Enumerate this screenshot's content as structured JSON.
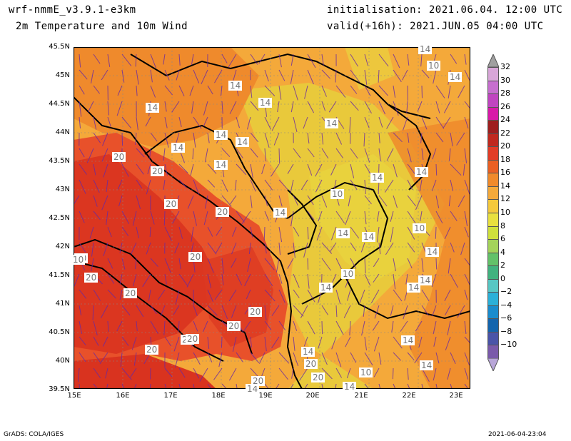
{
  "header": {
    "model": "wrf-nmmE_v3.9.1-e3km",
    "product": "2m Temperature and 10m Wind",
    "init": "initialisation: 2021.06.04. 12:00 UTC",
    "valid": "valid(+16h): 2021.JUN.05 04:00 UTC"
  },
  "footer": {
    "left": "GrADS: COLA/IGES",
    "right": "2021-06-04-23:04"
  },
  "map": {
    "lat_labels": [
      "45.5N",
      "45N",
      "44.5N",
      "44N",
      "43.5N",
      "43N",
      "42.5N",
      "42N",
      "41.5N",
      "41N",
      "40.5N",
      "40N",
      "39.5N"
    ],
    "lon_labels": [
      "15E",
      "16E",
      "17E",
      "18E",
      "19E",
      "20E",
      "21E",
      "22E",
      "23E"
    ],
    "contour_labels": [
      "14",
      "14",
      "14",
      "14",
      "14",
      "14",
      "14",
      "14",
      "14",
      "14",
      "14",
      "14",
      "14",
      "14",
      "14",
      "14",
      "14",
      "14",
      "14",
      "14",
      "14",
      "14",
      "14",
      "14",
      "10",
      "10",
      "10",
      "10",
      "10",
      "20",
      "20",
      "20",
      "20",
      "20",
      "20",
      "20",
      "20",
      "20",
      "20",
      "20",
      "20",
      "20",
      "20",
      "20",
      "20",
      "10"
    ]
  },
  "colorbar": {
    "labels": [
      "32",
      "30",
      "28",
      "26",
      "24",
      "22",
      "20",
      "18",
      "16",
      "14",
      "12",
      "10",
      "8",
      "6",
      "4",
      "2",
      "0",
      "−2",
      "−4",
      "−6",
      "−8",
      "−10"
    ],
    "colors": [
      "#d8a6d8",
      "#c76fcf",
      "#c045c0",
      "#d81aa8",
      "#9e1f1f",
      "#c0291f",
      "#e23d27",
      "#ea6024",
      "#f08a2b",
      "#f4a93a",
      "#f5c93c",
      "#e9e03f",
      "#cfe03c",
      "#a4d35a",
      "#63c169",
      "#42b27f",
      "#57c7c4",
      "#2bb0d8",
      "#1a8ccd",
      "#1465ad",
      "#4a54a8",
      "#7a5aaa"
    ]
  }
}
